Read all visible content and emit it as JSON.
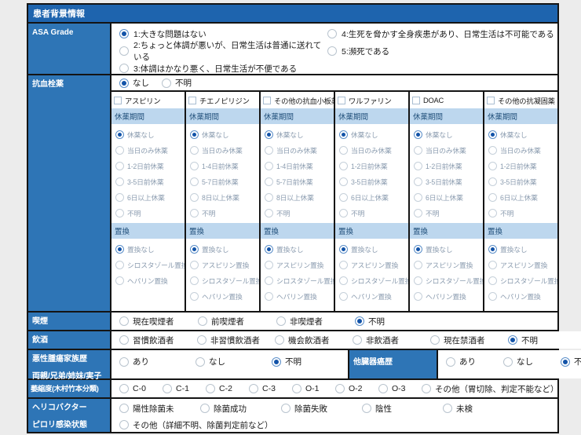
{
  "colors": {
    "header_blue": "#1E64AE",
    "label_blue": "#2E75B6",
    "band_blue": "#BDD7EE",
    "radio_selected_blue": "#1253A8"
  },
  "header": {
    "title": "患者背景情報"
  },
  "asa": {
    "label": "ASA Grade",
    "options_col1": [
      {
        "label": "1:大きな問題はない",
        "selected": true
      },
      {
        "label": "2:ちょっと体調が悪いが、日常生活は普通に送れている",
        "selected": false
      },
      {
        "label": "3:体調はかなり悪く、日常生活が不便である",
        "selected": false
      }
    ],
    "options_col2": [
      {
        "label": "4:生死を脅かす全身疾患があり、日常生活は不可能である",
        "selected": false
      },
      {
        "label": "5:瀕死である",
        "selected": false
      }
    ]
  },
  "antithrombotic": {
    "label": "抗血栓薬",
    "presence_options": [
      {
        "label": "なし",
        "selected": true
      },
      {
        "label": "不明",
        "selected": false
      }
    ],
    "withdrawal_header": "休薬期間",
    "replacement_header": "置換",
    "drugs": [
      {
        "name": "アスピリン",
        "checked": false,
        "withdrawal_options": [
          {
            "label": "休薬なし",
            "selected": true
          },
          {
            "label": "当日のみ休薬",
            "selected": false
          },
          {
            "label": "1-2日前休薬",
            "selected": false
          },
          {
            "label": "3-5日前休薬",
            "selected": false
          },
          {
            "label": "6日以上休薬",
            "selected": false
          },
          {
            "label": "不明",
            "selected": false
          }
        ],
        "replacement_options": [
          {
            "label": "置換なし",
            "selected": true
          },
          {
            "label": "シロスタゾール置換",
            "selected": false
          },
          {
            "label": "ヘパリン置換",
            "selected": false
          }
        ]
      },
      {
        "name": "チエノピリジン",
        "checked": false,
        "withdrawal_options": [
          {
            "label": "休薬なし",
            "selected": true
          },
          {
            "label": "当日のみ休薬",
            "selected": false
          },
          {
            "label": "1-4日前休薬",
            "selected": false
          },
          {
            "label": "5-7日前休薬",
            "selected": false
          },
          {
            "label": "8日以上休薬",
            "selected": false
          },
          {
            "label": "不明",
            "selected": false
          }
        ],
        "replacement_options": [
          {
            "label": "置換なし",
            "selected": true
          },
          {
            "label": "アスピリン置換",
            "selected": false
          },
          {
            "label": "シロスタゾール置換",
            "selected": false
          },
          {
            "label": "ヘパリン置換",
            "selected": false
          }
        ]
      },
      {
        "name": "その他の抗血小板薬",
        "checked": false,
        "withdrawal_options": [
          {
            "label": "休薬なし",
            "selected": true
          },
          {
            "label": "当日のみ休薬",
            "selected": false
          },
          {
            "label": "1-4日前休薬",
            "selected": false
          },
          {
            "label": "5-7日前休薬",
            "selected": false
          },
          {
            "label": "8日以上休薬",
            "selected": false
          },
          {
            "label": "不明",
            "selected": false
          }
        ],
        "replacement_options": [
          {
            "label": "置換なし",
            "selected": true
          },
          {
            "label": "アスピリン置換",
            "selected": false
          },
          {
            "label": "シロスタゾール置換",
            "selected": false
          },
          {
            "label": "ヘパリン置換",
            "selected": false
          }
        ]
      },
      {
        "name": "ワルファリン",
        "checked": false,
        "withdrawal_options": [
          {
            "label": "休薬なし",
            "selected": true
          },
          {
            "label": "当日のみ休薬",
            "selected": false
          },
          {
            "label": "1-2日前休薬",
            "selected": false
          },
          {
            "label": "3-5日前休薬",
            "selected": false
          },
          {
            "label": "6日以上休薬",
            "selected": false
          },
          {
            "label": "不明",
            "selected": false
          }
        ],
        "replacement_options": [
          {
            "label": "置換なし",
            "selected": true
          },
          {
            "label": "アスピリン置換",
            "selected": false
          },
          {
            "label": "シロスタゾール置換",
            "selected": false
          },
          {
            "label": "ヘパリン置換",
            "selected": false
          }
        ]
      },
      {
        "name": "DOAC",
        "checked": false,
        "withdrawal_options": [
          {
            "label": "休薬なし",
            "selected": true
          },
          {
            "label": "当日のみ休薬",
            "selected": false
          },
          {
            "label": "1-2日前休薬",
            "selected": false
          },
          {
            "label": "3-5日前休薬",
            "selected": false
          },
          {
            "label": "6日以上休薬",
            "selected": false
          },
          {
            "label": "不明",
            "selected": false
          }
        ],
        "replacement_options": [
          {
            "label": "置換なし",
            "selected": true
          },
          {
            "label": "アスピリン置換",
            "selected": false
          },
          {
            "label": "シロスタゾール置換",
            "selected": false
          },
          {
            "label": "ヘパリン置換",
            "selected": false
          }
        ]
      },
      {
        "name": "その他の抗凝固薬",
        "checked": false,
        "withdrawal_options": [
          {
            "label": "休薬なし",
            "selected": true
          },
          {
            "label": "当日のみ休薬",
            "selected": false
          },
          {
            "label": "1-2日前休薬",
            "selected": false
          },
          {
            "label": "3-5日前休薬",
            "selected": false
          },
          {
            "label": "6日以上休薬",
            "selected": false
          },
          {
            "label": "不明",
            "selected": false
          }
        ],
        "replacement_options": [
          {
            "label": "置換なし",
            "selected": true
          },
          {
            "label": "アスピリン置換",
            "selected": false
          },
          {
            "label": "シロスタゾール置換",
            "selected": false
          },
          {
            "label": "ヘパリン置換",
            "selected": false
          }
        ]
      }
    ]
  },
  "smoking": {
    "label": "喫煙",
    "options": [
      {
        "label": "現在喫煙者",
        "selected": false
      },
      {
        "label": "前喫煙者",
        "selected": false
      },
      {
        "label": "非喫煙者",
        "selected": false
      },
      {
        "label": "不明",
        "selected": true
      }
    ]
  },
  "drinking": {
    "label": "飲酒",
    "options": [
      {
        "label": "習慣飲酒者",
        "selected": false
      },
      {
        "label": "非習慣飲酒者",
        "selected": false
      },
      {
        "label": "機会飲酒者",
        "selected": false
      },
      {
        "label": "非飲酒者",
        "selected": false
      },
      {
        "label": "現在禁酒者",
        "selected": false
      },
      {
        "label": "不明",
        "selected": true
      }
    ]
  },
  "family_history": {
    "label_line1": "悪性腫瘍家族歴",
    "label_line2": "両親/兄弟/姉妹/実子",
    "options": [
      {
        "label": "あり",
        "selected": false
      },
      {
        "label": "なし",
        "selected": false
      },
      {
        "label": "不明",
        "selected": true
      }
    ]
  },
  "other_organ_cancer": {
    "label": "他臓器癌歴",
    "options": [
      {
        "label": "あり",
        "selected": false
      },
      {
        "label": "なし",
        "selected": false
      },
      {
        "label": "不明",
        "selected": true
      }
    ]
  },
  "atrophy": {
    "label": "萎縮度(木村竹本分類)",
    "options": [
      {
        "label": "C-0",
        "selected": false
      },
      {
        "label": "C-1",
        "selected": false
      },
      {
        "label": "C-2",
        "selected": false
      },
      {
        "label": "C-3",
        "selected": false
      },
      {
        "label": "O-1",
        "selected": false
      },
      {
        "label": "O-2",
        "selected": false
      },
      {
        "label": "O-3",
        "selected": false
      },
      {
        "label": "その他（胃切除、判定不能など）",
        "selected": false
      }
    ]
  },
  "pylori": {
    "label_line1": "ヘリコバクター",
    "label_line2": "ピロリ感染状態",
    "options_line1": [
      {
        "label": "陽性除菌未",
        "selected": false
      },
      {
        "label": "除菌成功",
        "selected": false
      },
      {
        "label": "除菌失敗",
        "selected": false
      },
      {
        "label": "陰性",
        "selected": false
      },
      {
        "label": "未検",
        "selected": false
      }
    ],
    "options_line2": [
      {
        "label": "その他（詳細不明、除菌判定前など）",
        "selected": false
      }
    ]
  }
}
